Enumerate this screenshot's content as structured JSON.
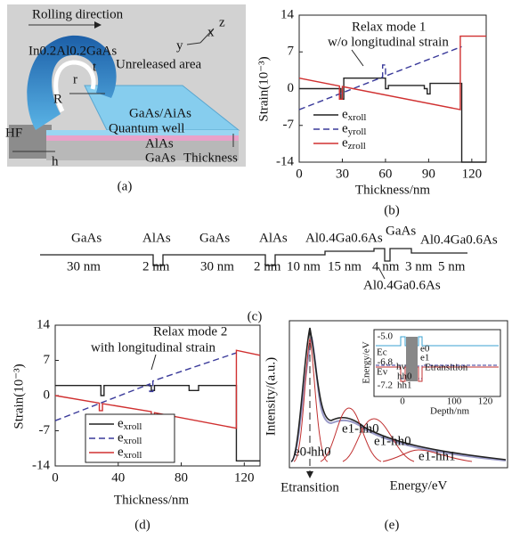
{
  "panel_a": {
    "labels": [
      "Rolling direction",
      "In0.2Al0.2GaAs",
      "x",
      "z",
      "y",
      "t",
      "r",
      "R",
      "Unreleased area",
      "GaAs/AiAs",
      "Quantum well",
      "AlAs",
      "GaAs",
      "HF",
      "h",
      "Thickness"
    ],
    "caption": "(a)"
  },
  "panel_c": {
    "top": [
      "GaAs",
      "AlAs",
      "GaAs",
      "AlAs",
      "Al0.4Ga0.6As",
      "GaAs",
      "Al0.4Ga0.6As"
    ],
    "bottom": [
      "30 nm",
      "2 nm",
      "30 nm",
      "2 nm",
      "10 nm",
      "15 nm",
      "4 nm",
      "3 nm",
      "5 nm"
    ],
    "below": "Al0.4Ga0.6As",
    "caption": "(c)"
  },
  "panel_e": {
    "ylabel": "Intensity/(a.u.)",
    "xlabel": "Energy/eV",
    "marker": "Etransition",
    "peaks": [
      "e0-hh0",
      "e1-hh0",
      "e1-hh0",
      "e1-hh1"
    ],
    "inset": {
      "ylabel": "Energy/eV",
      "xlabel": "Depth/nm",
      "yticks": [
        "-5.0",
        "-6.8",
        "-7.2"
      ],
      "xticks": [
        "0",
        "100",
        "120"
      ],
      "labels": [
        "Ec",
        "Ev",
        "e0",
        "e1",
        "hv",
        "hh0",
        "hh1",
        "Etransition"
      ]
    },
    "caption": "(e)"
  },
  "chart_data": [
    {
      "type": "line",
      "annotation": [
        "Relax mode 1",
        "w/o longitudinal strain"
      ],
      "xlabel": "Thickness/nm",
      "ylabel": "Strain(10⁻³)",
      "caption": "(b)",
      "xlim": [
        0,
        130
      ],
      "ylim": [
        -14,
        14
      ],
      "xticks": [
        0,
        30,
        60,
        90,
        120
      ],
      "yticks": [
        -14,
        -7,
        0,
        7,
        14
      ],
      "legend": "lower left",
      "series": [
        {
          "name": "exroll",
          "color": "#222222",
          "dash": false,
          "x": [
            0,
            29,
            29,
            31,
            31,
            60,
            60,
            62,
            62,
            87,
            87,
            89,
            89,
            91,
            91,
            113,
            113,
            130
          ],
          "values": [
            0,
            0,
            -2,
            -2,
            2,
            2,
            0,
            0,
            0.6,
            0.6,
            0,
            0,
            -1,
            -1,
            1,
            1,
            -14,
            -14
          ]
        },
        {
          "name": "eyroll",
          "color": "#3a3a9a",
          "dash": true,
          "x": [
            0,
            58,
            58,
            60,
            60,
            113
          ],
          "values": [
            -4,
            2.2,
            4.5,
            4.5,
            2.4,
            8
          ]
        },
        {
          "name": "ezroll",
          "color": "#d03030",
          "dash": false,
          "x": [
            0,
            28,
            28,
            30,
            30,
            112,
            112,
            130
          ],
          "values": [
            2,
            0.5,
            -2,
            -2,
            0.4,
            -4,
            10,
            10
          ]
        }
      ]
    },
    {
      "type": "line",
      "annotation": [
        "Relax mode 2",
        "with longitudinal strain"
      ],
      "xlabel": "Thickness/nm",
      "ylabel": "Strain(10⁻³)",
      "caption": "(d)",
      "xlim": [
        0,
        130
      ],
      "ylim": [
        -14,
        14
      ],
      "xticks": [
        0,
        40,
        80,
        120
      ],
      "yticks": [
        -14,
        -7,
        0,
        7,
        14
      ],
      "legend": "lower left",
      "series": [
        {
          "name": "exroll",
          "color": "#222222",
          "dash": false,
          "x": [
            0,
            29,
            29,
            31,
            31,
            61,
            61,
            63,
            63,
            85,
            85,
            91,
            91,
            115,
            115,
            130
          ],
          "values": [
            2,
            2,
            0,
            0,
            2,
            2,
            1,
            1,
            2,
            2,
            1,
            1,
            2,
            2,
            -13,
            -13
          ]
        },
        {
          "name": "exroll",
          "color": "#3a3a9a",
          "dash": true,
          "x": [
            0,
            60,
            60,
            62,
            62,
            115
          ],
          "values": [
            -5,
            2.3,
            0.8,
            0.8,
            2.9,
            8.5
          ]
        },
        {
          "name": "exroll",
          "color": "#d03030",
          "dash": false,
          "x": [
            0,
            28,
            28,
            30,
            30,
            61,
            61,
            63,
            63,
            115,
            115,
            130
          ],
          "values": [
            0,
            -1.5,
            -3,
            -3,
            -1.6,
            -3.2,
            -4.5,
            -4.5,
            -3.4,
            -6.5,
            9,
            8
          ]
        }
      ]
    }
  ]
}
